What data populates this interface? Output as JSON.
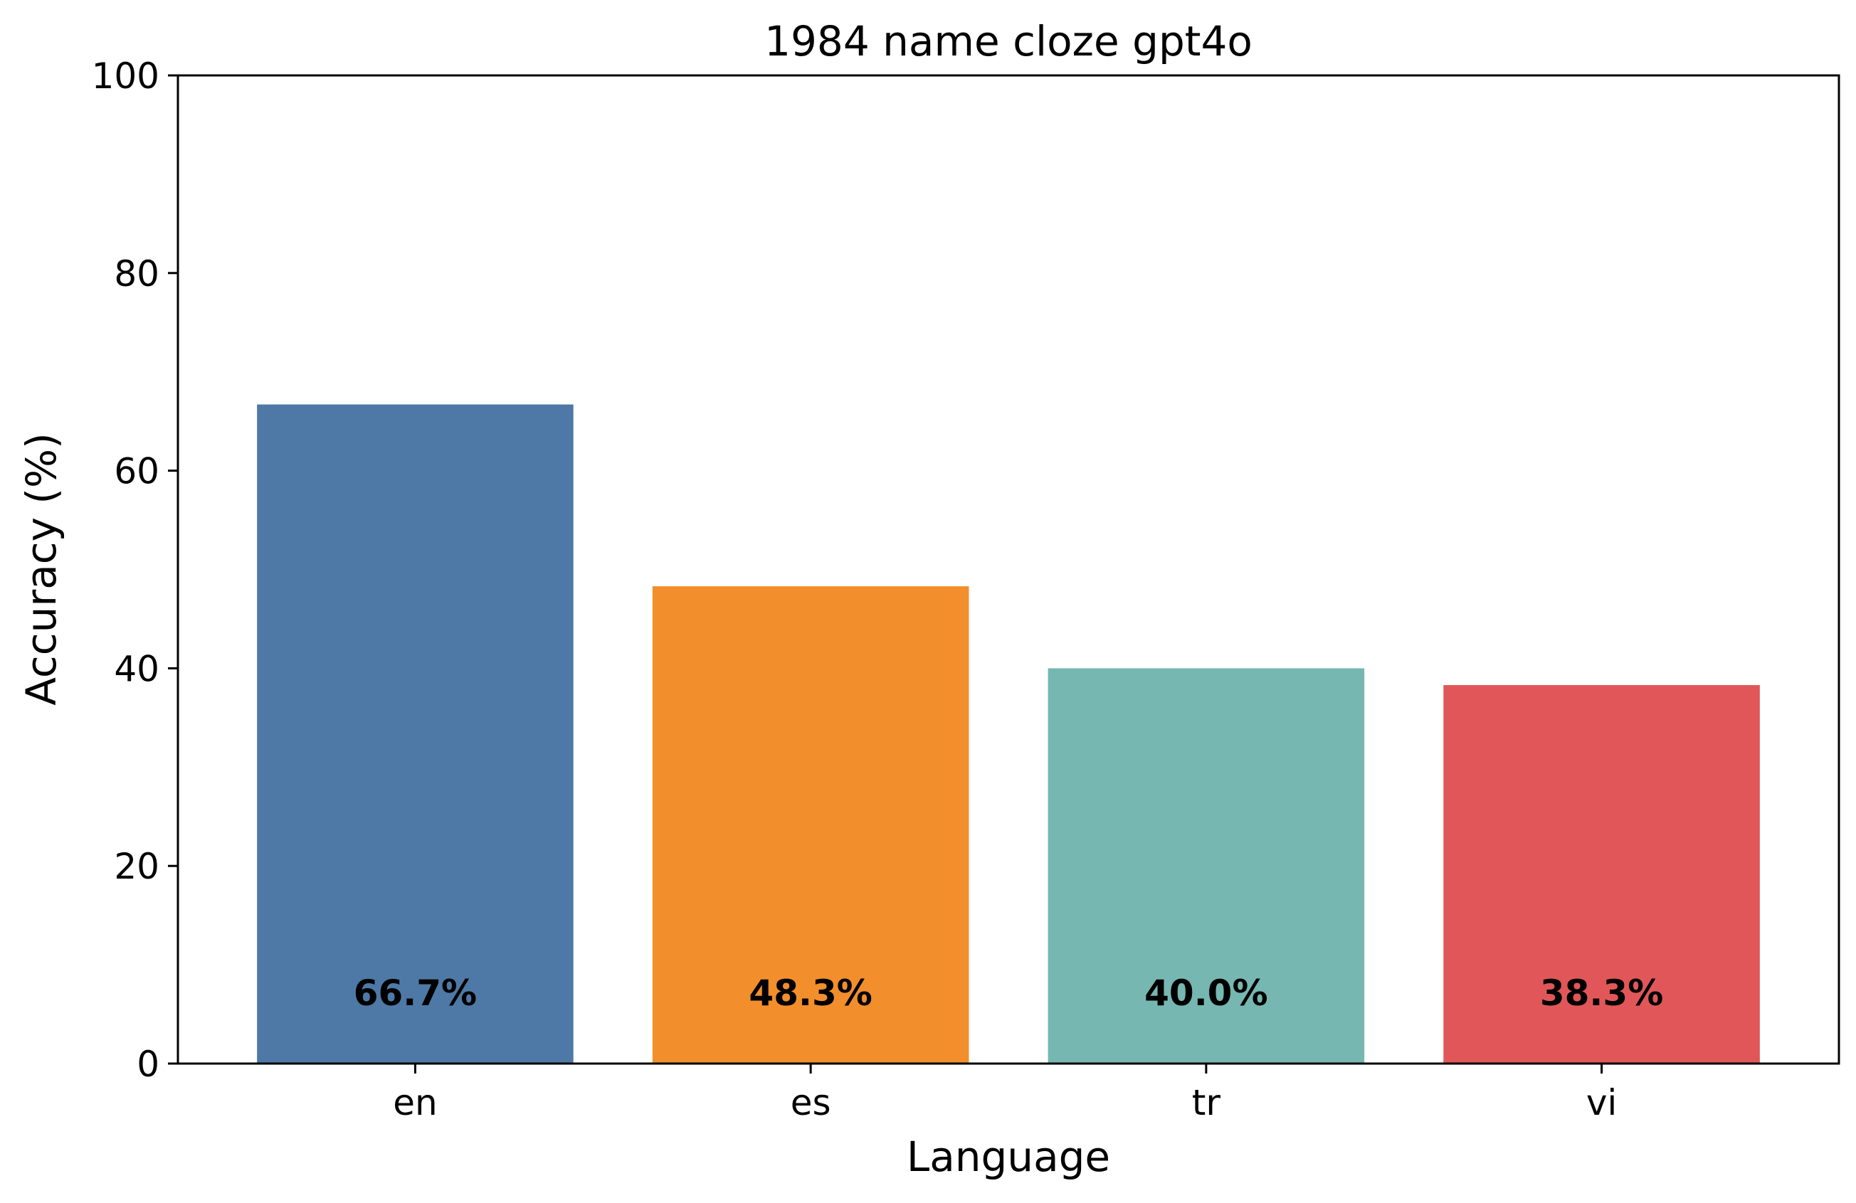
{
  "chart_data": {
    "type": "bar",
    "title": "1984 name cloze gpt4o",
    "xlabel": "Language",
    "ylabel": "Accuracy (%)",
    "categories": [
      "en",
      "es",
      "tr",
      "vi"
    ],
    "values": [
      66.7,
      48.3,
      40.0,
      38.3
    ],
    "data_labels": [
      "66.7%",
      "48.3%",
      "40.0%",
      "38.3%"
    ],
    "colors": [
      "#4e79a7",
      "#f28e2b",
      "#76b7b2",
      "#e15759"
    ],
    "ylim": [
      0,
      100
    ],
    "yticks": [
      0,
      20,
      40,
      60,
      80,
      100
    ],
    "grid": false,
    "legend": "none"
  }
}
